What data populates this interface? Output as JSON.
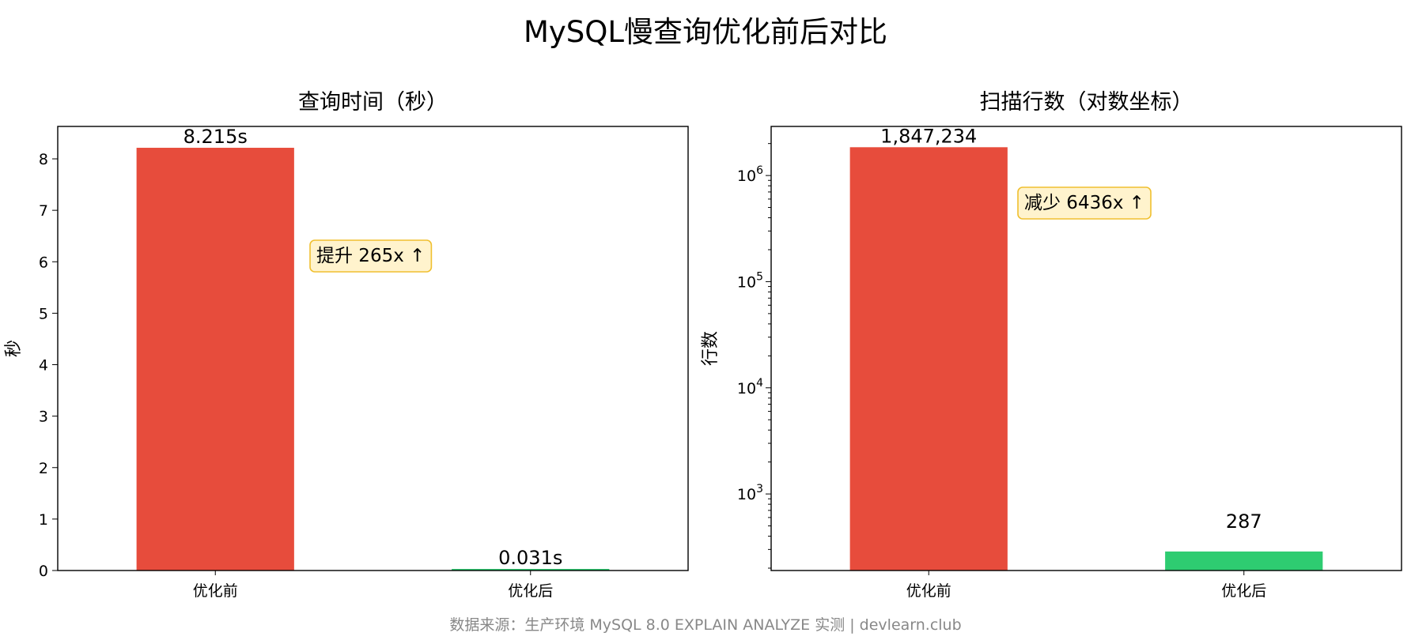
{
  "suptitle": "MySQL慢查询优化前后对比",
  "footer": "数据来源：生产环境 MySQL 8.0 EXPLAIN ANALYZE 实测 | devlearn.club",
  "colors": {
    "before": "#e74c3c",
    "after": "#2ecc71",
    "annotation_fill": "#fff3cd",
    "annotation_edge": "#f0c030"
  },
  "chart_data": [
    {
      "type": "bar",
      "title": "查询时间（秒）",
      "ylabel": "秒",
      "categories": [
        "优化前",
        "优化后"
      ],
      "values": [
        8.215,
        0.031
      ],
      "value_labels": [
        "8.215s",
        "0.031s"
      ],
      "ylim": [
        0,
        8.63
      ],
      "yscale": "linear",
      "yticks": [
        0,
        1,
        2,
        3,
        4,
        5,
        6,
        7,
        8
      ],
      "annotation": "提升 265x ↑",
      "grid": false
    },
    {
      "type": "bar",
      "title": "扫描行数（对数坐标）",
      "ylabel": "行数",
      "categories": [
        "优化前",
        "优化后"
      ],
      "values": [
        1847234,
        287
      ],
      "value_labels": [
        "1,847,234",
        "287"
      ],
      "ylim": [
        190,
        2900000
      ],
      "yscale": "log",
      "yticks": [
        1000,
        10000,
        100000,
        1000000
      ],
      "ytick_labels": [
        "10^3",
        "10^4",
        "10^5",
        "10^6"
      ],
      "annotation": "减少 6436x ↑",
      "grid": false
    }
  ]
}
